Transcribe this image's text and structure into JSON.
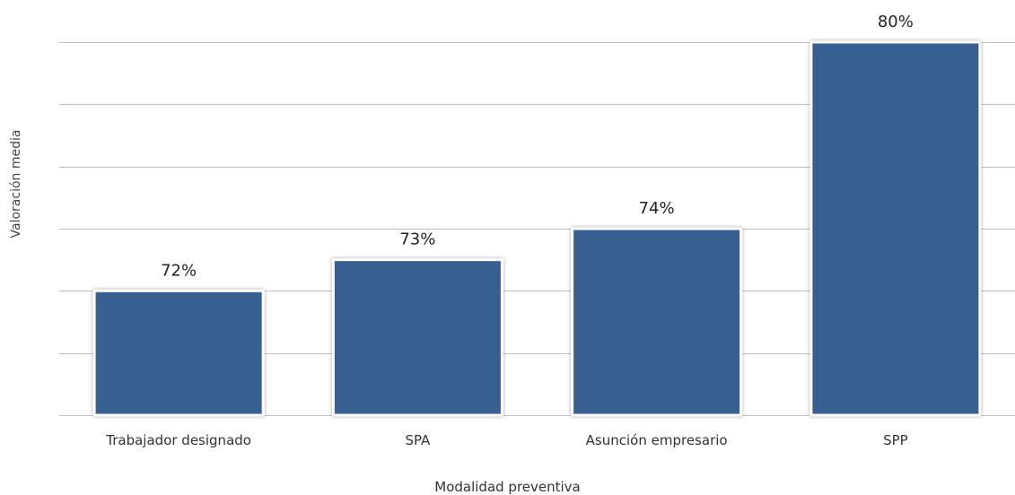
{
  "chart_data": {
    "type": "bar",
    "title": "",
    "xlabel": "Modalidad preventiva",
    "ylabel": "Valoración media",
    "categories": [
      "Trabajador designado",
      "SPA",
      "Asunción empresario",
      "SPP"
    ],
    "values": [
      72,
      73,
      74,
      80
    ],
    "value_labels": [
      "72%",
      "73%",
      "74%",
      "80%"
    ],
    "ylim": [
      68,
      80
    ],
    "ytick_step": 2,
    "ytick_labels_shown": false,
    "grid": true,
    "legend": "none",
    "colors": {
      "bar": "#375e91",
      "grid": "#bfbfbf",
      "text": "#222222"
    }
  }
}
